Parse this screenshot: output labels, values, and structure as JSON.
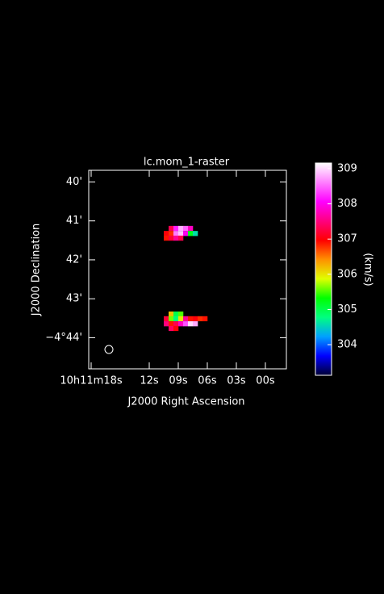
{
  "chart_data": {
    "type": "image",
    "title": "lc.mom_1-raster",
    "xlabel": "J2000 Right Ascension",
    "ylabel": "J2000 Declination",
    "xlim": [
      18.25,
      -2.17
    ],
    "ylim": [
      -284.8,
      -279.7
    ],
    "xticks": [
      {
        "value": 18,
        "label": "10h11m18s"
      },
      {
        "value": 12,
        "label": "12s"
      },
      {
        "value": 9,
        "label": "09s"
      },
      {
        "value": 6,
        "label": "06s"
      },
      {
        "value": 3,
        "label": "03s"
      },
      {
        "value": 0,
        "label": "00s"
      }
    ],
    "yticks": [
      {
        "value": -280,
        "label": "40'"
      },
      {
        "value": -281,
        "label": "41'"
      },
      {
        "value": -282,
        "label": "42'"
      },
      {
        "value": -283,
        "label": "43'"
      },
      {
        "value": -284,
        "label": "−4°44'"
      }
    ],
    "pixels": {
      "ra": [
        9.75,
        9.25,
        8.75,
        8.25,
        7.75,
        10.25,
        9.75,
        9.25,
        8.75,
        8.25,
        7.75,
        7.25,
        10.25,
        9.75,
        9.25,
        8.75,
        9.75,
        9.25,
        8.75,
        10.25,
        9.75,
        9.25,
        8.75,
        8.25,
        7.75,
        7.25,
        6.75,
        6.25,
        10.25,
        9.75,
        9.25,
        8.75,
        8.25,
        7.75,
        7.25,
        9.75,
        9.25
      ],
      "dec": [
        -281.19,
        -281.19,
        -281.19,
        -281.19,
        -281.19,
        -281.32,
        -281.32,
        -281.32,
        -281.32,
        -281.32,
        -281.32,
        -281.32,
        -281.44,
        -281.44,
        -281.44,
        -281.44,
        -283.39,
        -283.39,
        -283.39,
        -283.51,
        -283.51,
        -283.51,
        -283.51,
        -283.51,
        -283.51,
        -283.51,
        -283.51,
        -283.51,
        -283.64,
        -283.64,
        -283.64,
        -283.64,
        -283.64,
        -283.64,
        -283.64,
        -283.76,
        -283.76
      ],
      "values": [
        307.3,
        308.2,
        308.8,
        308.5,
        307.8,
        307.0,
        306.8,
        308.6,
        308.9,
        308.0,
        305.2,
        304.6,
        306.9,
        307.2,
        307.6,
        307.3,
        306.2,
        305.0,
        305.5,
        307.2,
        305.6,
        304.8,
        306.0,
        307.6,
        306.9,
        307.0,
        306.8,
        306.9,
        307.5,
        306.9,
        307.3,
        307.8,
        308.4,
        309.0,
        308.8,
        307.4,
        307.0
      ]
    },
    "colorbar": {
      "label": "(km/s)",
      "clim": [
        303.13,
        309.16
      ],
      "ticks": [
        304,
        305,
        306,
        307,
        308,
        309
      ],
      "colormap": [
        "#000033",
        "#0000ff",
        "#00a0ff",
        "#00ff80",
        "#00ff00",
        "#e0ff00",
        "#ff9000",
        "#ff0000",
        "#ff0080",
        "#ff00ff",
        "#ff80ff",
        "#ffffff"
      ]
    }
  }
}
